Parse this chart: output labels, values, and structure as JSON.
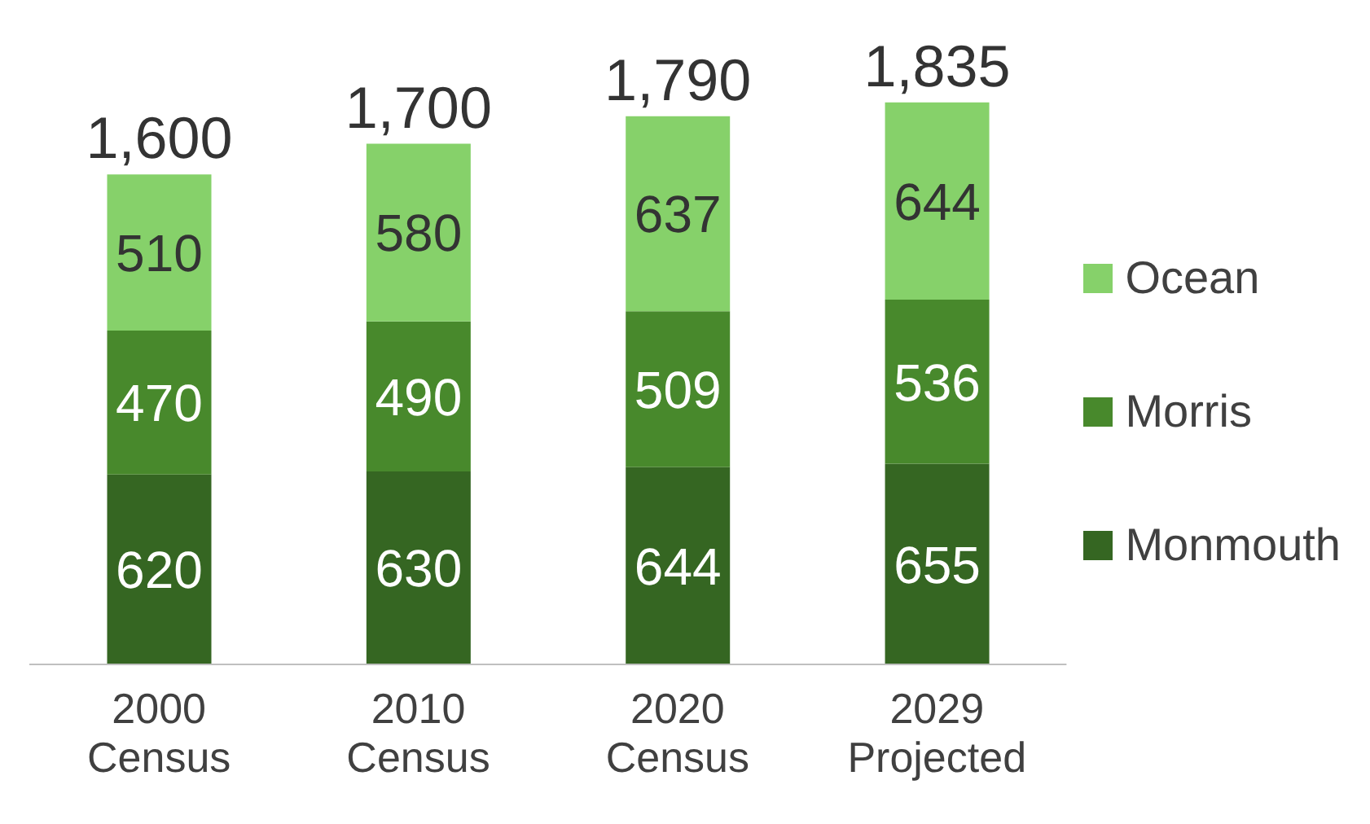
{
  "chart_data": {
    "type": "bar",
    "stacked": true,
    "categories": [
      "2000 Census",
      "2010 Census",
      "2020 Census",
      "2029 Projected"
    ],
    "series": [
      {
        "name": "Monmouth",
        "color": "#356622",
        "values": [
          620,
          630,
          644,
          655
        ]
      },
      {
        "name": "Morris",
        "color": "#48892c",
        "values": [
          470,
          490,
          509,
          536
        ]
      },
      {
        "name": "Ocean",
        "color": "#86d16a",
        "values": [
          510,
          580,
          637,
          644
        ]
      }
    ],
    "totals": [
      "1,600",
      "1,700",
      "1,790",
      "1,835"
    ],
    "data_labels": true,
    "legend": "right",
    "tick_labels": "x",
    "grid": false
  }
}
